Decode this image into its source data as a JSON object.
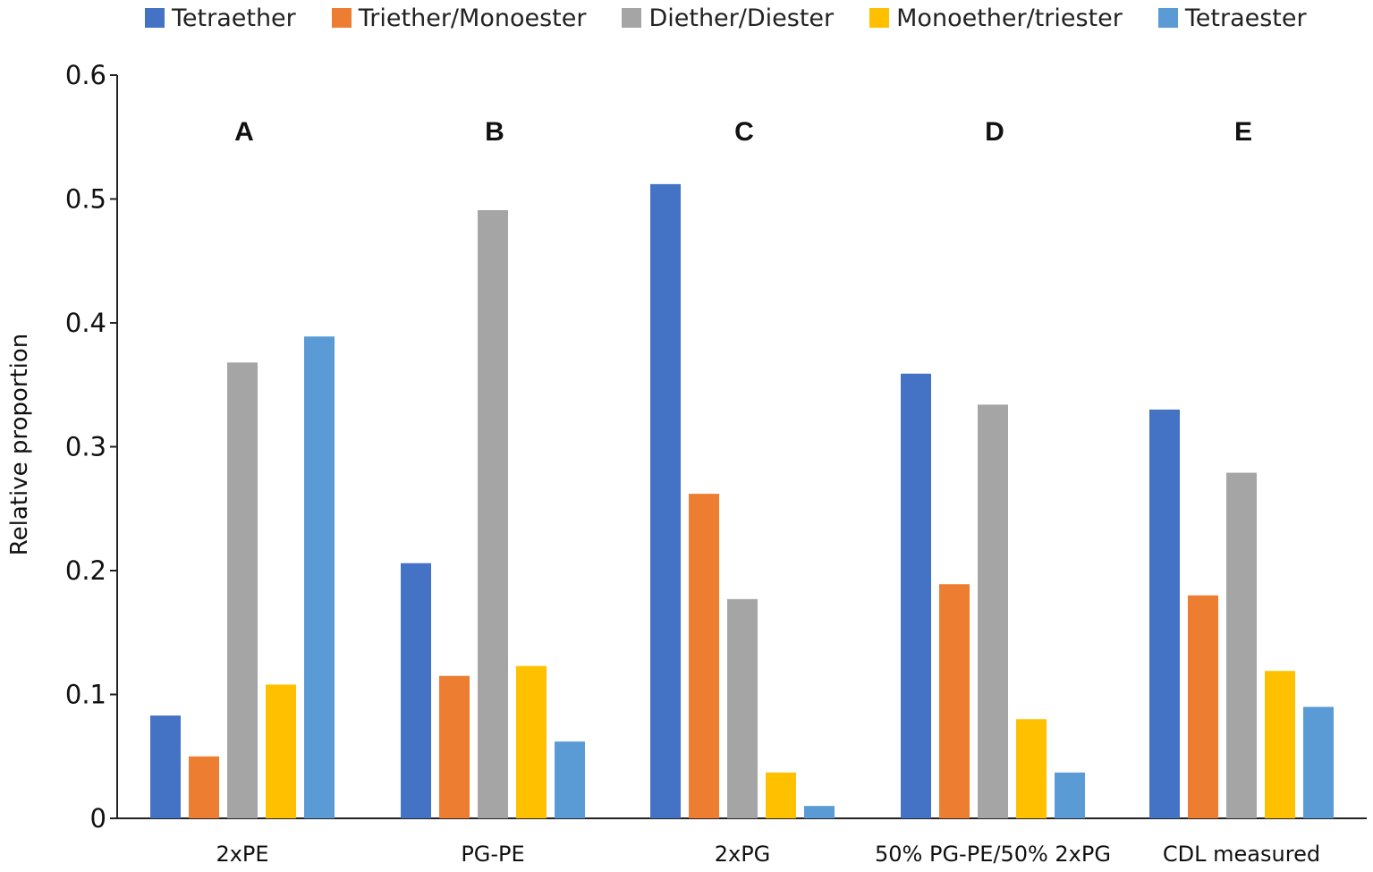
{
  "chart_data": {
    "type": "bar",
    "title": "",
    "xlabel": "",
    "ylabel": "Relative proportion",
    "ylim": [
      0,
      0.6
    ],
    "yticks": [
      0,
      0.1,
      0.2,
      0.3,
      0.4,
      0.5,
      0.6
    ],
    "ytick_labels": [
      "0",
      "0.1",
      "0.2",
      "0.3",
      "0.4",
      "0.5",
      "0.6"
    ],
    "legend_position": "top",
    "categories": [
      "2xPE",
      "PG-PE",
      "2xPG",
      "50% PG-PE/50% 2xPG",
      "CDL measured"
    ],
    "panel_letters": [
      "A",
      "B",
      "C",
      "D",
      "E"
    ],
    "series": [
      {
        "name": "Tetraether",
        "color": "#4472C4",
        "values": [
          0.083,
          0.206,
          0.512,
          0.359,
          0.33
        ]
      },
      {
        "name": "Triether/Monoester",
        "color": "#ED7D31",
        "values": [
          0.05,
          0.115,
          0.262,
          0.189,
          0.18
        ]
      },
      {
        "name": "Diether/Diester",
        "color": "#A5A5A5",
        "values": [
          0.368,
          0.491,
          0.177,
          0.334,
          0.279
        ]
      },
      {
        "name": "Monoether/triester",
        "color": "#FFC000",
        "values": [
          0.108,
          0.123,
          0.037,
          0.08,
          0.119
        ]
      },
      {
        "name": "Tetraester",
        "color": "#5B9BD5",
        "values": [
          0.389,
          0.062,
          0.01,
          0.037,
          0.09
        ]
      }
    ]
  }
}
